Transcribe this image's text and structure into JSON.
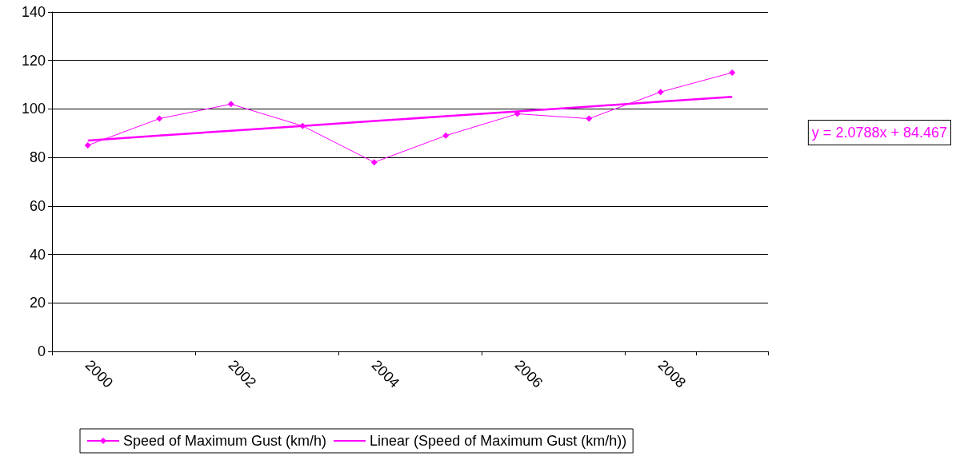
{
  "chart_data": {
    "type": "line",
    "categories": [
      "2000",
      null,
      "2002",
      null,
      "2004",
      null,
      "2006",
      null,
      "2008",
      null
    ],
    "series": [
      {
        "name": "Speed of Maximum Gust (km/h)",
        "color": "#ff00ff",
        "marker": "diamond",
        "values": [
          85,
          96,
          102,
          93,
          78,
          89,
          98,
          96,
          107,
          115
        ]
      },
      {
        "name": "Linear (Speed of Maximum Gust (km/h))",
        "color": "#ff00ff",
        "marker": "none",
        "values": [
          87,
          89,
          91,
          93,
          95,
          97,
          99,
          101,
          103,
          105
        ]
      }
    ],
    "ylim": [
      0,
      140
    ],
    "yticks": [
      0,
      20,
      40,
      60,
      80,
      100,
      120,
      140
    ],
    "grid": "y",
    "legend": "bottom",
    "annotations": [
      "y = 2.0788x + 84.467"
    ]
  }
}
